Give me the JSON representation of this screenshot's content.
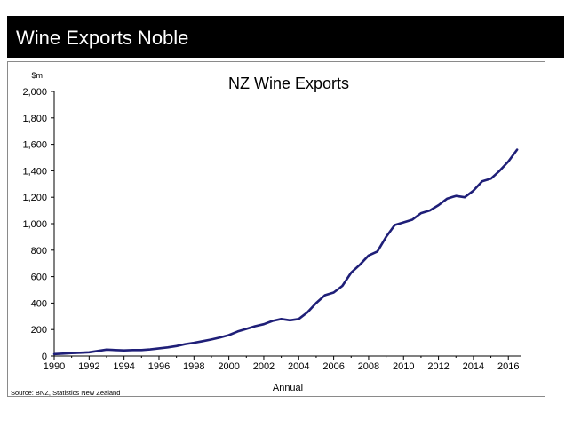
{
  "header": {
    "title": "Wine Exports Noble"
  },
  "chart_data": {
    "type": "line",
    "title": "NZ Wine Exports",
    "ylabel": "$m",
    "xlabel": "Annual",
    "source": "Source: BNZ, Statistics New Zealand",
    "ylim": [
      0,
      2000
    ],
    "xlim": [
      1990,
      2016.7
    ],
    "yticks": [
      0,
      200,
      400,
      600,
      800,
      1000,
      1200,
      1400,
      1600,
      1800,
      2000
    ],
    "ytick_labels": [
      "0",
      "200",
      "400",
      "600",
      "800",
      "1,000",
      "1,200",
      "1,400",
      "1,600",
      "1,800",
      "2,000"
    ],
    "xticks": [
      1990,
      1992,
      1994,
      1996,
      1998,
      2000,
      2002,
      2004,
      2006,
      2008,
      2010,
      2012,
      2014,
      2016
    ],
    "xtick_labels": [
      "1990",
      "1992",
      "1994",
      "1996",
      "1998",
      "2000",
      "2002",
      "2004",
      "2006",
      "2008",
      "2010",
      "2012",
      "2014",
      "2016"
    ],
    "grid": false,
    "legend": "none",
    "series_color": "#1f1f78",
    "series": [
      {
        "x": [
          1990.0,
          1990.5,
          1991.0,
          1991.5,
          1992.0,
          1992.5,
          1993.0,
          1993.5,
          1994.0,
          1994.5,
          1995.0,
          1995.5,
          1996.0,
          1996.5,
          1997.0,
          1997.5,
          1998.0,
          1998.5,
          1999.0,
          1999.5,
          2000.0,
          2000.5,
          2001.0,
          2001.5,
          2002.0,
          2002.5,
          2003.0,
          2003.5,
          2004.0,
          2004.5,
          2005.0,
          2005.5,
          2006.0,
          2006.5,
          2007.0,
          2007.5,
          2008.0,
          2008.5,
          2009.0,
          2009.5,
          2010.0,
          2010.5,
          2011.0,
          2011.5,
          2012.0,
          2012.5,
          2013.0,
          2013.5,
          2014.0,
          2014.5,
          2015.0,
          2015.5,
          2016.0,
          2016.5
        ],
        "values": [
          15,
          18,
          22,
          25,
          28,
          38,
          48,
          45,
          42,
          45,
          45,
          50,
          58,
          65,
          75,
          90,
          100,
          112,
          125,
          140,
          158,
          185,
          205,
          225,
          240,
          265,
          280,
          270,
          280,
          330,
          400,
          460,
          480,
          530,
          630,
          690,
          760,
          790,
          900,
          990,
          1010,
          1030,
          1080,
          1100,
          1140,
          1190,
          1210,
          1200,
          1250,
          1320,
          1340,
          1400,
          1470,
          1560
        ]
      }
    ]
  }
}
